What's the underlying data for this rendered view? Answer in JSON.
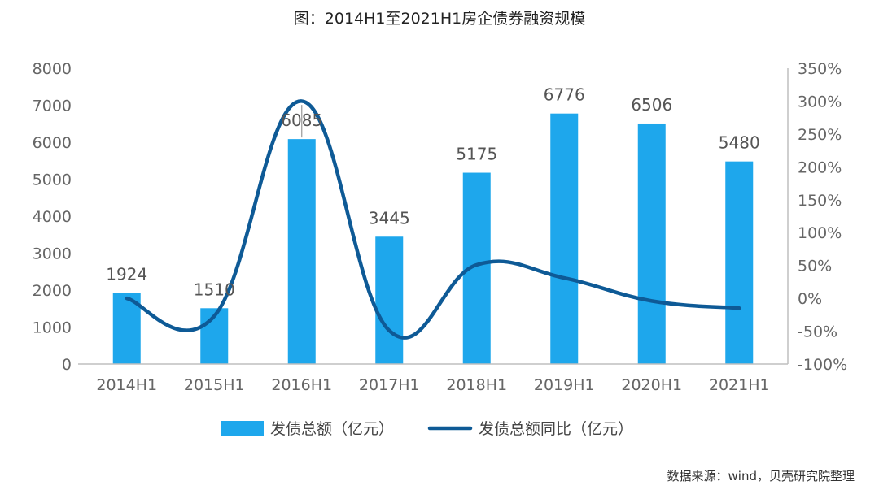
{
  "title": "图：2014H1至2021H1房企债券融资规模",
  "source": "数据来源：wind，贝壳研究院整理",
  "colors": {
    "bar": "#1EA7EC",
    "line": "#0E5A96",
    "axis": "#bfbfbf"
  },
  "chart_data": {
    "type": "bar+line",
    "categories": [
      "2014H1",
      "2015H1",
      "2016H1",
      "2017H1",
      "2018H1",
      "2019H1",
      "2020H1",
      "2021H1"
    ],
    "series": [
      {
        "name": "发债总额（亿元）",
        "type": "bar",
        "axis": "left",
        "values": [
          1924,
          1510,
          6085,
          3445,
          5175,
          6776,
          6506,
          5480
        ],
        "labels": [
          "1924",
          "1510",
          "6085",
          "3445",
          "5175",
          "6776",
          "6506",
          "5480"
        ]
      },
      {
        "name": "发债总额同比（亿元）",
        "type": "line",
        "axis": "right",
        "smooth": true,
        "values": [
          0,
          -27,
          300,
          -49,
          51,
          31,
          -4,
          -15
        ]
      }
    ],
    "y_left": {
      "min": 0,
      "max": 8000,
      "step": 1000,
      "ticks": [
        "0",
        "1000",
        "2000",
        "3000",
        "4000",
        "5000",
        "6000",
        "7000",
        "8000"
      ]
    },
    "y_right": {
      "min": -100,
      "max": 350,
      "step": 50,
      "ticks": [
        "-100%",
        "-50%",
        "0%",
        "50%",
        "100%",
        "150%",
        "200%",
        "250%",
        "300%",
        "350%"
      ]
    },
    "legend_position": "bottom",
    "grid": false
  }
}
